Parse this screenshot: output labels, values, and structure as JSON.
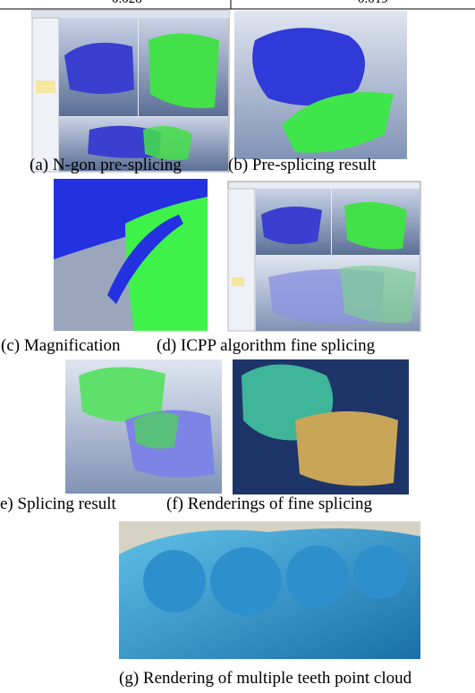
{
  "table": {
    "rows": [
      [
        "0.028",
        "0.019"
      ]
    ]
  },
  "figures": [
    {
      "caption": "(a) N-gon pre-splicing"
    },
    {
      "caption": "(b) Pre-splicing result"
    },
    {
      "caption": "(c) Magnification"
    },
    {
      "caption": "(d) ICPP algorithm fine splicing"
    },
    {
      "caption": "e) Splicing result"
    },
    {
      "caption": "(f) Renderings of fine splicing"
    },
    {
      "caption": "(g) Rendering of multiple teeth point cloud"
    }
  ]
}
